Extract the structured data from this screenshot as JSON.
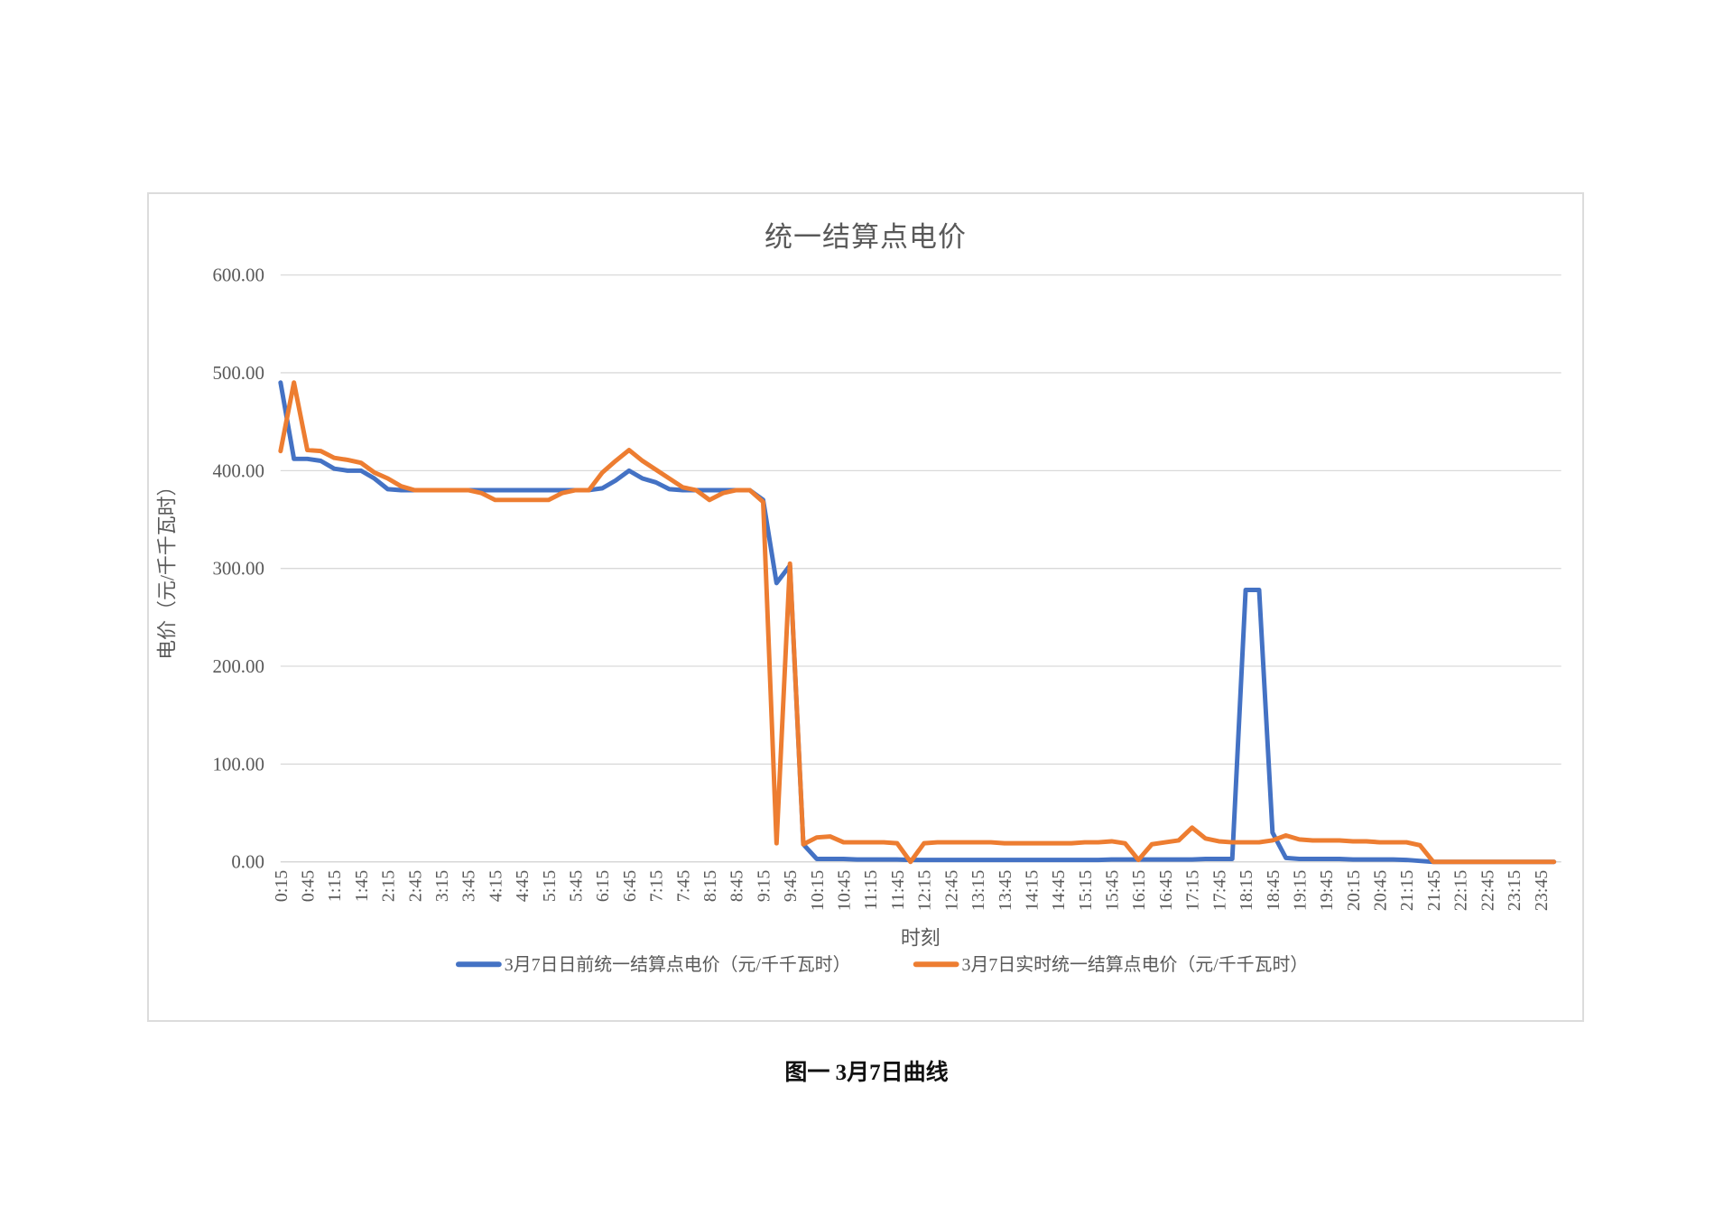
{
  "page": {
    "caption": "图一 3月7日曲线",
    "background": "#ffffff"
  },
  "chart": {
    "title": "统一结算点电价",
    "x_axis": {
      "title": "时刻",
      "tick_labels": [
        "0:15",
        "0:45",
        "1:15",
        "1:45",
        "2:15",
        "2:45",
        "3:15",
        "3:45",
        "4:15",
        "4:45",
        "5:15",
        "5:45",
        "6:15",
        "6:45",
        "7:15",
        "7:45",
        "8:15",
        "8:45",
        "9:15",
        "9:45",
        "10:15",
        "10:45",
        "11:15",
        "11:45",
        "12:15",
        "12:45",
        "13:15",
        "13:45",
        "14:15",
        "14:45",
        "15:15",
        "15:45",
        "16:15",
        "16:45",
        "17:15",
        "17:45",
        "18:15",
        "18:45",
        "19:15",
        "19:45",
        "20:15",
        "20:45",
        "21:15",
        "21:45",
        "22:15",
        "22:45",
        "23:15",
        "23:45"
      ]
    },
    "y_axis": {
      "title": "电价（元/千千瓦时）",
      "tick_labels": [
        "0.00",
        "100.00",
        "200.00",
        "300.00",
        "400.00",
        "500.00",
        "600.00"
      ]
    },
    "legend": [
      {
        "label": "3月7日日前统一结算点电价（元/千千瓦时）",
        "color": "#4472C4"
      },
      {
        "label": "3月7日实时统一结算点电价（元/千千瓦时）",
        "color": "#ED7D31"
      }
    ],
    "colors": {
      "grid": "#D9D9D9",
      "axis_line": "#CFCFCF",
      "axis_text": "#595959",
      "title_text": "#595959"
    }
  },
  "chart_data": {
    "type": "line",
    "title": "统一结算点电价",
    "xlabel": "时刻",
    "ylabel": "电价（元/千千瓦时）",
    "ylim": [
      0,
      600
    ],
    "y_ticks": [
      0,
      100,
      200,
      300,
      400,
      500,
      600
    ],
    "grid": true,
    "legend_position": "bottom",
    "x": [
      "0:15",
      "0:30",
      "0:45",
      "1:00",
      "1:15",
      "1:30",
      "1:45",
      "2:00",
      "2:15",
      "2:30",
      "2:45",
      "3:00",
      "3:15",
      "3:30",
      "3:45",
      "4:00",
      "4:15",
      "4:30",
      "4:45",
      "5:00",
      "5:15",
      "5:30",
      "5:45",
      "6:00",
      "6:15",
      "6:30",
      "6:45",
      "7:00",
      "7:15",
      "7:30",
      "7:45",
      "8:00",
      "8:15",
      "8:30",
      "8:45",
      "9:00",
      "9:15",
      "9:30",
      "9:45",
      "10:00",
      "10:15",
      "10:30",
      "10:45",
      "11:00",
      "11:15",
      "11:30",
      "11:45",
      "12:00",
      "12:15",
      "12:30",
      "12:45",
      "13:00",
      "13:15",
      "13:30",
      "13:45",
      "14:00",
      "14:15",
      "14:30",
      "14:45",
      "15:00",
      "15:15",
      "15:30",
      "15:45",
      "16:00",
      "16:15",
      "16:30",
      "16:45",
      "17:00",
      "17:15",
      "17:30",
      "17:45",
      "18:00",
      "18:15",
      "18:30",
      "18:45",
      "19:00",
      "19:15",
      "19:30",
      "19:45",
      "20:00",
      "20:15",
      "20:30",
      "20:45",
      "21:00",
      "21:15",
      "21:30",
      "21:45",
      "22:00",
      "22:15",
      "22:30",
      "22:45",
      "23:00",
      "23:15",
      "23:30",
      "23:45",
      "24:00"
    ],
    "series": [
      {
        "name": "3月7日日前统一结算点电价（元/千千瓦时）",
        "color": "#4472C4",
        "values": [
          490,
          412,
          412,
          410,
          402,
          400,
          400,
          392,
          381,
          380,
          380,
          380,
          380,
          380,
          380,
          380,
          380,
          380,
          380,
          380,
          380,
          380,
          380,
          380,
          382,
          390,
          400,
          392,
          388,
          381,
          380,
          380,
          380,
          380,
          380,
          380,
          370,
          285,
          303,
          18,
          3,
          3,
          3,
          2.5,
          2.5,
          2.5,
          2.5,
          2,
          2,
          2,
          2,
          2,
          2,
          2,
          2,
          2,
          2,
          2,
          2,
          2,
          2,
          2,
          2.5,
          2.5,
          2.5,
          2.5,
          2.5,
          2.5,
          2.5,
          3,
          3,
          3,
          278,
          278,
          30,
          4,
          3,
          3,
          3,
          3,
          2.5,
          2.5,
          2.5,
          2.5,
          2,
          1,
          0,
          0,
          0,
          0,
          0,
          0,
          0,
          0,
          0,
          0
        ]
      },
      {
        "name": "3月7日实时统一结算点电价（元/千千瓦时）",
        "color": "#ED7D31",
        "values": [
          420,
          490,
          421,
          420,
          413,
          411,
          408,
          398,
          392,
          384,
          380,
          380,
          380,
          380,
          380,
          377,
          370,
          370,
          370,
          370,
          370,
          377,
          380,
          380,
          398,
          410,
          421,
          410,
          401,
          392,
          383,
          380,
          370,
          377,
          380,
          380,
          368,
          19,
          305,
          18,
          25,
          26,
          20,
          20,
          20,
          20,
          19,
          0,
          19,
          20,
          20,
          20,
          20,
          20,
          19,
          19,
          19,
          19,
          19,
          19,
          20,
          20,
          21,
          19,
          2,
          18,
          20,
          22,
          35,
          24,
          21,
          20,
          20,
          20,
          22,
          27,
          23,
          22,
          22,
          22,
          21,
          21,
          20,
          20,
          20,
          17,
          0,
          0,
          0,
          0,
          0,
          0,
          0,
          0,
          0,
          0
        ]
      }
    ]
  }
}
